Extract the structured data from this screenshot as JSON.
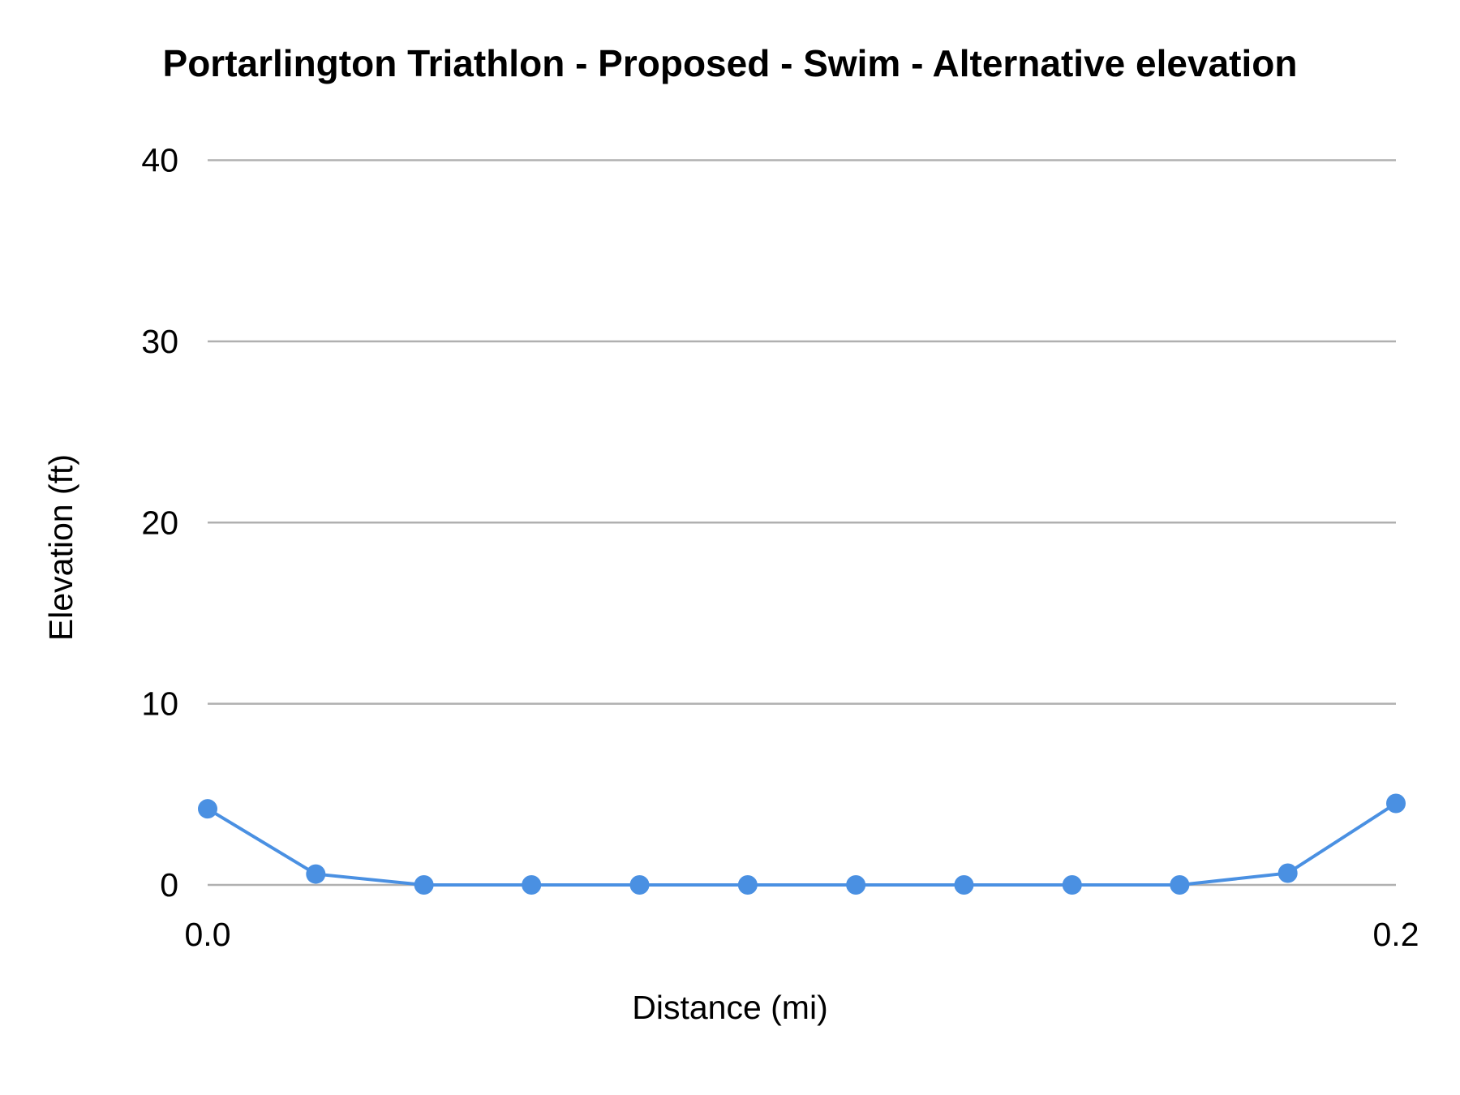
{
  "chart_data": {
    "type": "line",
    "title": "Portarlington Triathlon - Proposed  - Swim - Alternative  elevation",
    "xlabel": "Distance (mi)",
    "ylabel": "Elevation (ft)",
    "xlim": [
      0,
      0.2
    ],
    "ylim": [
      0,
      40
    ],
    "x_ticks": [
      "0.0",
      "0.2"
    ],
    "y_ticks": [
      "0",
      "10",
      "20",
      "30",
      "40"
    ],
    "grid": true,
    "series": [
      {
        "color": "#4a90e2",
        "x": [
          0,
          0.0182,
          0.0364,
          0.0545,
          0.0727,
          0.0909,
          0.1091,
          0.1273,
          0.1455,
          0.1636,
          0.1818,
          0.2
        ],
        "y": [
          4.2,
          0.6,
          0,
          0,
          0,
          0,
          0,
          0,
          0,
          0,
          0.65,
          4.5
        ]
      }
    ]
  }
}
